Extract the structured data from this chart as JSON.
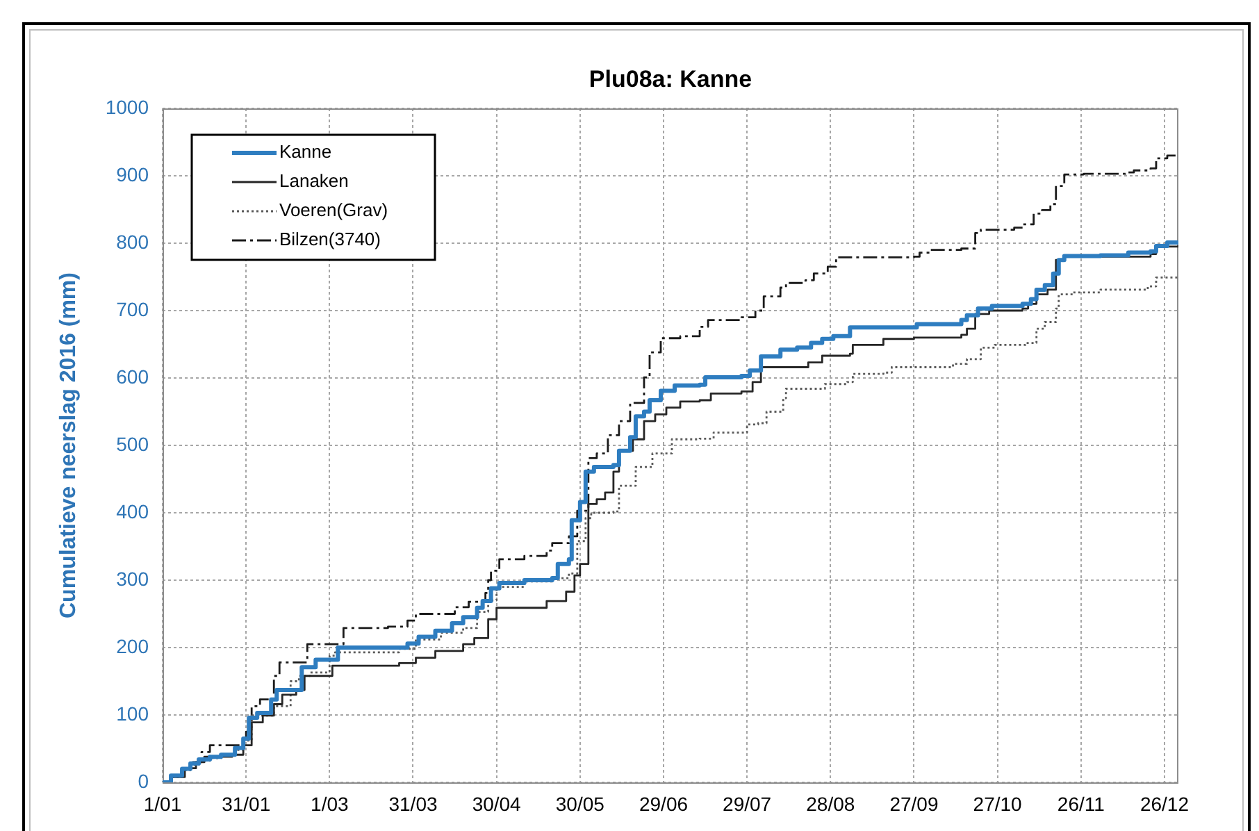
{
  "chart_data": {
    "type": "step",
    "title": "Plu08a: Kanne",
    "ylabel": "Cumulatieve neerslag 2016 (mm)",
    "xlim": [
      "2016-01-01",
      "2016-12-31"
    ],
    "xticks": [
      {
        "value": "2016-01-01",
        "label": "1/01"
      },
      {
        "value": "2016-01-31",
        "label": "31/01"
      },
      {
        "value": "2016-03-01",
        "label": "1/03"
      },
      {
        "value": "2016-03-31",
        "label": "31/03"
      },
      {
        "value": "2016-04-30",
        "label": "30/04"
      },
      {
        "value": "2016-05-30",
        "label": "30/05"
      },
      {
        "value": "2016-06-29",
        "label": "29/06"
      },
      {
        "value": "2016-07-29",
        "label": "29/07"
      },
      {
        "value": "2016-08-28",
        "label": "28/08"
      },
      {
        "value": "2016-09-27",
        "label": "27/09"
      },
      {
        "value": "2016-10-27",
        "label": "27/10"
      },
      {
        "value": "2016-11-26",
        "label": "26/11"
      },
      {
        "value": "2016-12-26",
        "label": "26/12"
      }
    ],
    "ylim": [
      0,
      1000
    ],
    "yticks": [
      0,
      100,
      200,
      300,
      400,
      500,
      600,
      700,
      800,
      900,
      1000
    ],
    "grid": true,
    "legend": "top left",
    "series": [
      {
        "name": "Kanne",
        "color": "#2e7dc0",
        "line_style": "solid",
        "x": [
          "2016-01-01",
          "2016-01-04",
          "2016-01-08",
          "2016-01-11",
          "2016-01-14",
          "2016-01-18",
          "2016-01-22",
          "2016-01-27",
          "2016-01-30",
          "2016-02-01",
          "2016-02-04",
          "2016-02-09",
          "2016-02-11",
          "2016-02-20",
          "2016-02-25",
          "2016-03-04",
          "2016-03-29",
          "2016-04-02",
          "2016-04-08",
          "2016-04-14",
          "2016-04-18",
          "2016-04-23",
          "2016-04-25",
          "2016-04-28",
          "2016-05-01",
          "2016-05-10",
          "2016-05-20",
          "2016-05-22",
          "2016-05-26",
          "2016-05-27",
          "2016-05-30",
          "2016-06-01",
          "2016-06-04",
          "2016-06-11",
          "2016-06-13",
          "2016-06-17",
          "2016-06-19",
          "2016-06-22",
          "2016-06-24",
          "2016-06-28",
          "2016-07-03",
          "2016-07-12",
          "2016-07-14",
          "2016-07-27",
          "2016-07-30",
          "2016-08-03",
          "2016-08-10",
          "2016-08-16",
          "2016-08-21",
          "2016-08-25",
          "2016-08-29",
          "2016-09-04",
          "2016-09-28",
          "2016-10-14",
          "2016-10-16",
          "2016-10-20",
          "2016-10-25",
          "2016-11-05",
          "2016-11-08",
          "2016-11-10",
          "2016-11-13",
          "2016-11-16",
          "2016-11-18",
          "2016-11-20",
          "2016-12-03",
          "2016-12-13",
          "2016-12-21",
          "2016-12-23",
          "2016-12-27",
          "2016-12-31"
        ],
        "values": [
          0,
          10,
          20,
          28,
          34,
          38,
          41,
          51,
          65,
          96,
          103,
          123,
          137,
          171,
          182,
          200,
          206,
          216,
          225,
          236,
          245,
          259,
          269,
          288,
          296,
          300,
          303,
          324,
          331,
          389,
          416,
          461,
          468,
          471,
          492,
          512,
          543,
          550,
          567,
          581,
          589,
          590,
          601,
          603,
          611,
          632,
          642,
          645,
          652,
          658,
          662,
          675,
          680,
          686,
          693,
          703,
          707,
          710,
          717,
          731,
          738,
          755,
          775,
          781,
          782,
          786,
          788,
          796,
          801,
          801
        ]
      },
      {
        "name": "Lanaken",
        "color": "#262626",
        "line_style": "solid",
        "x": [
          "2016-01-01",
          "2016-01-04",
          "2016-01-09",
          "2016-01-13",
          "2016-01-16",
          "2016-01-26",
          "2016-01-30",
          "2016-02-02",
          "2016-02-06",
          "2016-02-10",
          "2016-02-13",
          "2016-02-18",
          "2016-02-21",
          "2016-03-02",
          "2016-03-26",
          "2016-04-01",
          "2016-04-08",
          "2016-04-18",
          "2016-04-22",
          "2016-04-27",
          "2016-04-30",
          "2016-05-18",
          "2016-05-25",
          "2016-05-28",
          "2016-05-30",
          "2016-06-02",
          "2016-06-05",
          "2016-06-08",
          "2016-06-11",
          "2016-06-13",
          "2016-06-18",
          "2016-06-22",
          "2016-06-26",
          "2016-06-30",
          "2016-07-05",
          "2016-07-12",
          "2016-07-16",
          "2016-07-27",
          "2016-07-31",
          "2016-08-03",
          "2016-08-20",
          "2016-08-25",
          "2016-09-04",
          "2016-09-05",
          "2016-09-16",
          "2016-09-27",
          "2016-10-14",
          "2016-10-16",
          "2016-10-19",
          "2016-10-24",
          "2016-11-05",
          "2016-11-07",
          "2016-11-10",
          "2016-11-14",
          "2016-11-17",
          "2016-11-20",
          "2016-12-21",
          "2016-12-23",
          "2016-12-31"
        ],
        "values": [
          0,
          8,
          21,
          30,
          38,
          41,
          55,
          89,
          99,
          116,
          130,
          137,
          158,
          173,
          177,
          185,
          195,
          205,
          214,
          242,
          259,
          269,
          283,
          307,
          324,
          413,
          420,
          430,
          461,
          492,
          509,
          536,
          546,
          556,
          565,
          567,
          577,
          580,
          594,
          616,
          623,
          633,
          636,
          649,
          658,
          660,
          664,
          673,
          695,
          700,
          703,
          710,
          724,
          731,
          775,
          780,
          784,
          795,
          797
        ]
      },
      {
        "name": "Voeren(Grav)",
        "color": "#595959",
        "line_style": "dotted",
        "x": [
          "2016-01-01",
          "2016-01-04",
          "2016-01-08",
          "2016-01-11",
          "2016-01-14",
          "2016-01-18",
          "2016-01-22",
          "2016-01-27",
          "2016-01-30",
          "2016-02-02",
          "2016-02-10",
          "2016-02-16",
          "2016-02-19",
          "2016-02-23",
          "2016-03-01",
          "2016-03-03",
          "2016-03-26",
          "2016-04-01",
          "2016-04-10",
          "2016-04-18",
          "2016-04-23",
          "2016-04-27",
          "2016-04-30",
          "2016-05-10",
          "2016-05-20",
          "2016-05-26",
          "2016-05-29",
          "2016-06-01",
          "2016-06-03",
          "2016-06-11",
          "2016-06-13",
          "2016-06-19",
          "2016-06-25",
          "2016-07-02",
          "2016-07-12",
          "2016-07-17",
          "2016-07-29",
          "2016-08-02",
          "2016-08-05",
          "2016-08-11",
          "2016-08-12",
          "2016-08-26",
          "2016-09-03",
          "2016-09-05",
          "2016-09-16",
          "2016-09-19",
          "2016-10-11",
          "2016-10-16",
          "2016-10-21",
          "2016-10-26",
          "2016-11-06",
          "2016-11-10",
          "2016-11-13",
          "2016-11-17",
          "2016-11-18",
          "2016-11-23",
          "2016-12-03",
          "2016-12-20",
          "2016-12-23",
          "2016-12-31"
        ],
        "values": [
          0,
          8,
          18,
          26,
          32,
          36,
          40,
          48,
          62,
          99,
          113,
          150,
          158,
          163,
          188,
          193,
          198,
          212,
          222,
          229,
          253,
          270,
          290,
          298,
          303,
          310,
          358,
          392,
          400,
          402,
          440,
          468,
          488,
          509,
          510,
          519,
          531,
          533,
          550,
          570,
          584,
          591,
          594,
          606,
          608,
          616,
          621,
          628,
          645,
          649,
          652,
          673,
          683,
          703,
          724,
          727,
          731,
          736,
          749,
          751
        ]
      },
      {
        "name": "Bilzen(3740)",
        "color": "#1a1a1a",
        "line_style": "dashed",
        "x": [
          "2016-01-01",
          "2016-01-04",
          "2016-01-08",
          "2016-01-11",
          "2016-01-15",
          "2016-01-18",
          "2016-01-30",
          "2016-01-31",
          "2016-02-02",
          "2016-02-05",
          "2016-02-10",
          "2016-02-12",
          "2016-02-22",
          "2016-03-06",
          "2016-03-22",
          "2016-03-29",
          "2016-04-01",
          "2016-04-15",
          "2016-04-20",
          "2016-04-26",
          "2016-04-27",
          "2016-04-28",
          "2016-05-01",
          "2016-05-10",
          "2016-05-18",
          "2016-05-20",
          "2016-05-26",
          "2016-05-29",
          "2016-06-02",
          "2016-06-05",
          "2016-06-09",
          "2016-06-13",
          "2016-06-17",
          "2016-06-22",
          "2016-06-24",
          "2016-06-28",
          "2016-07-05",
          "2016-07-12",
          "2016-07-15",
          "2016-07-27",
          "2016-08-01",
          "2016-08-04",
          "2016-08-10",
          "2016-08-12",
          "2016-08-19",
          "2016-08-22",
          "2016-08-27",
          "2016-08-30",
          "2016-09-27",
          "2016-09-29",
          "2016-10-03",
          "2016-10-14",
          "2016-10-19",
          "2016-10-21",
          "2016-11-02",
          "2016-11-05",
          "2016-11-09",
          "2016-11-12",
          "2016-11-15",
          "2016-11-17",
          "2016-11-20",
          "2016-11-27",
          "2016-12-12",
          "2016-12-15",
          "2016-12-21",
          "2016-12-23",
          "2016-12-27",
          "2016-12-31"
        ],
        "values": [
          0,
          10,
          20,
          30,
          45,
          55,
          58,
          75,
          113,
          123,
          158,
          178,
          205,
          229,
          231,
          240,
          250,
          260,
          268,
          281,
          300,
          314,
          331,
          336,
          344,
          355,
          365,
          403,
          481,
          488,
          515,
          536,
          563,
          601,
          638,
          659,
          662,
          676,
          686,
          690,
          700,
          721,
          734,
          741,
          745,
          755,
          765,
          779,
          780,
          786,
          790,
          792,
          815,
          820,
          823,
          828,
          844,
          849,
          858,
          885,
          902,
          903,
          905,
          908,
          911,
          926,
          930,
          930
        ]
      }
    ]
  }
}
